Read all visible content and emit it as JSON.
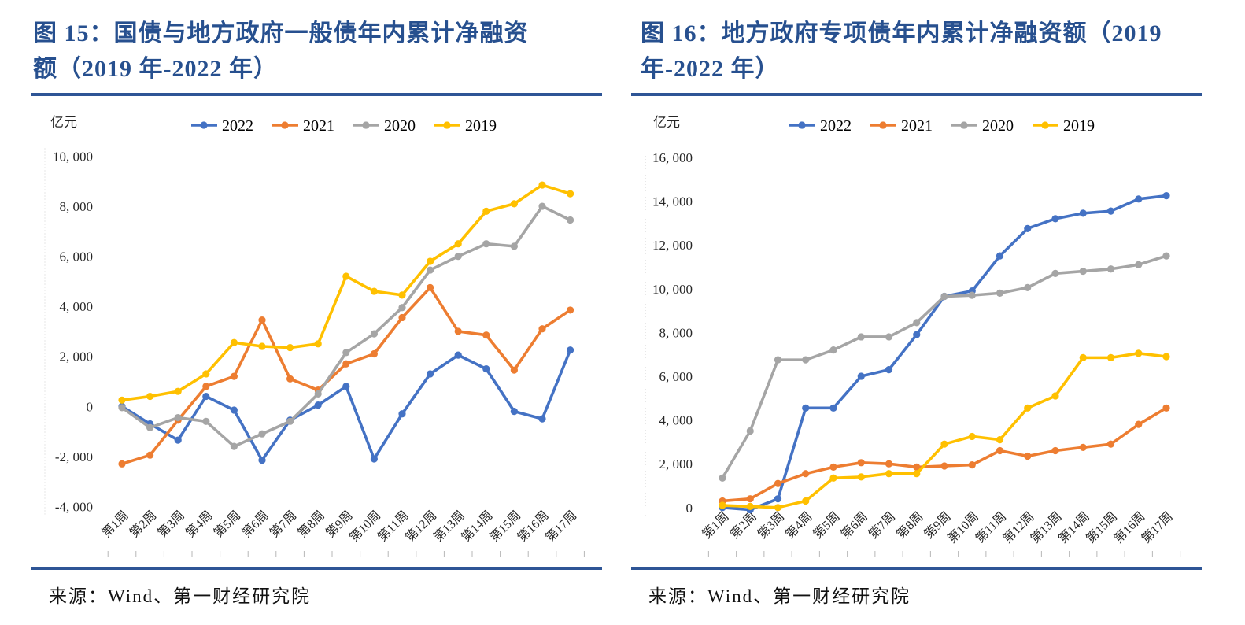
{
  "page": {
    "background": "#ffffff",
    "rule_color": "#2E5596",
    "title_color": "#27508F"
  },
  "panels": [
    {
      "title_line1": "图 15：国债与地方政府一般债年内累计净融资",
      "title_line2": "额（2019 年-2022 年）",
      "unit": "亿元",
      "source": "来源：Wind、第一财经研究院"
    },
    {
      "title_line1": "图 16：地方政府专项债年内累计净融资额（2019",
      "title_line2": "年-2022 年）",
      "unit": "亿元",
      "source": "来源：Wind、第一财经研究院"
    }
  ],
  "chart_data": [
    {
      "type": "line",
      "title": "图 15：国债与地方政府一般债年内累计净融资额（2019 年-2022 年）",
      "unit": "亿元",
      "xlabel": "",
      "ylabel": "亿元",
      "categories": [
        "第1周",
        "第2周",
        "第3周",
        "第4周",
        "第5周",
        "第6周",
        "第7周",
        "第8周",
        "第9周",
        "第10周",
        "第11周",
        "第12周",
        "第13周",
        "第14周",
        "第15周",
        "第16周",
        "第17周"
      ],
      "ylim": [
        -4000,
        10000
      ],
      "ytick_step": 2000,
      "grid": false,
      "legend_position": "top",
      "series": [
        {
          "name": "2022",
          "color": "#4472C4",
          "values": [
            0,
            -700,
            -1350,
            400,
            -150,
            -2150,
            -550,
            50,
            800,
            -2100,
            -300,
            1300,
            2050,
            1500,
            -200,
            -500,
            2250
          ]
        },
        {
          "name": "2021",
          "color": "#ED7D31",
          "values": [
            -2300,
            -1950,
            -550,
            800,
            1200,
            3450,
            1100,
            650,
            1700,
            2100,
            3550,
            4750,
            3000,
            2850,
            1450,
            3100,
            3850
          ]
        },
        {
          "name": "2020",
          "color": "#A5A5A5",
          "values": [
            -50,
            -850,
            -450,
            -600,
            -1600,
            -1100,
            -600,
            500,
            2150,
            2900,
            3950,
            5450,
            6000,
            6500,
            6400,
            8000,
            7450
          ]
        },
        {
          "name": "2019",
          "color": "#FFC000",
          "values": [
            250,
            400,
            600,
            1300,
            2550,
            2400,
            2350,
            2500,
            5200,
            4600,
            4450,
            5800,
            6500,
            7800,
            8100,
            8850,
            8500
          ]
        }
      ],
      "source": "来源：Wind、第一财经研究院"
    },
    {
      "type": "line",
      "title": "图 16：地方政府专项债年内累计净融资额（2019 年-2022 年）",
      "unit": "亿元",
      "xlabel": "",
      "ylabel": "亿元",
      "categories": [
        "第1周",
        "第2周",
        "第3周",
        "第4周",
        "第5周",
        "第6周",
        "第7周",
        "第8周",
        "第9周",
        "第10周",
        "第11周",
        "第12周",
        "第13周",
        "第14周",
        "第15周",
        "第16周",
        "第17周"
      ],
      "ylim": [
        0,
        16000
      ],
      "ytick_step": 2000,
      "grid": false,
      "legend_position": "top",
      "series": [
        {
          "name": "2022",
          "color": "#4472C4",
          "values": [
            0,
            -100,
            400,
            4550,
            4550,
            6000,
            6300,
            7900,
            9650,
            9900,
            11500,
            12750,
            13200,
            13450,
            13550,
            14100,
            14250
          ]
        },
        {
          "name": "2021",
          "color": "#ED7D31",
          "values": [
            300,
            400,
            1100,
            1550,
            1850,
            2050,
            2000,
            1850,
            1900,
            1950,
            2600,
            2350,
            2600,
            2750,
            2900,
            3800,
            4550
          ]
        },
        {
          "name": "2020",
          "color": "#A5A5A5",
          "values": [
            1350,
            3500,
            6750,
            6750,
            7200,
            7800,
            7800,
            8450,
            9650,
            9700,
            9800,
            10050,
            10700,
            10800,
            10900,
            11100,
            11500
          ]
        },
        {
          "name": "2019",
          "color": "#FFC000",
          "values": [
            100,
            50,
            0,
            300,
            1350,
            1400,
            1550,
            1550,
            2900,
            3250,
            3100,
            4550,
            5100,
            6850,
            6850,
            7050,
            6900
          ]
        }
      ],
      "source": "来源：Wind、第一财经研究院"
    }
  ]
}
